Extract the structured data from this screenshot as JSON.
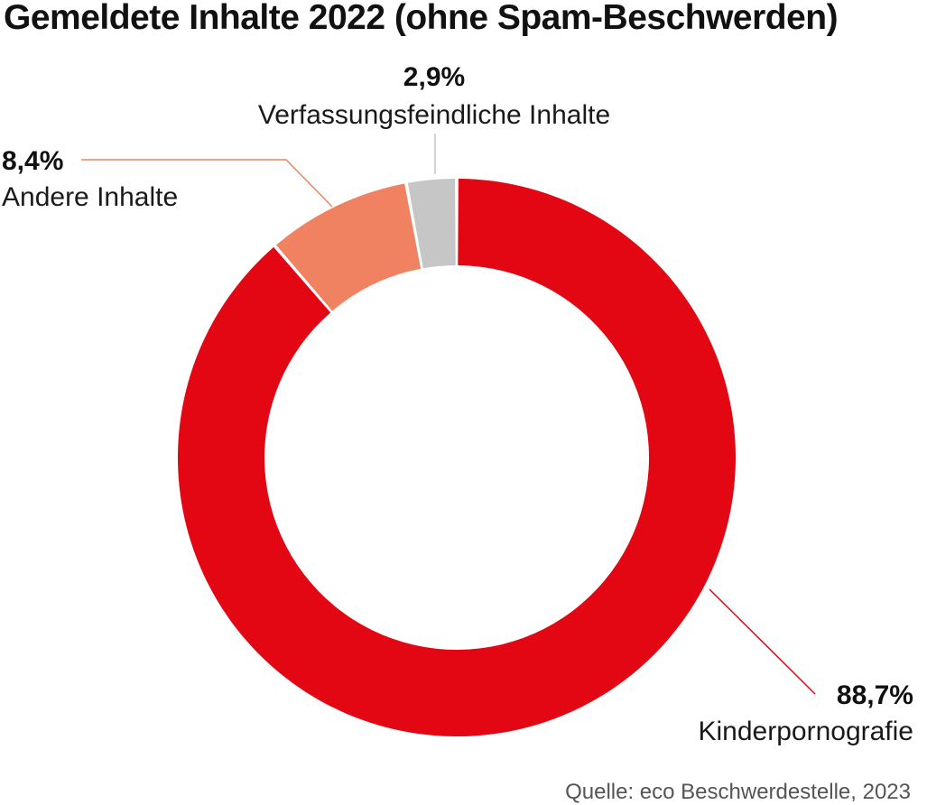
{
  "chart_data": {
    "type": "pie",
    "donut": true,
    "title": "Gemeldete Inhalte 2022 (ohne Spam-Beschwerden)",
    "slices": [
      {
        "name": "Kinderpornografie",
        "value": 88.7,
        "label": "88,7%",
        "color": "#e30613"
      },
      {
        "name": "Andere Inhalte",
        "value": 8.4,
        "label": "8,4%",
        "color": "#f08262"
      },
      {
        "name": "Verfassungsfeindliche Inhalte",
        "value": 2.9,
        "label": "2,9%",
        "color": "#c6c6c6"
      }
    ],
    "source": "Quelle: eco Beschwerdestelle, 2023"
  }
}
